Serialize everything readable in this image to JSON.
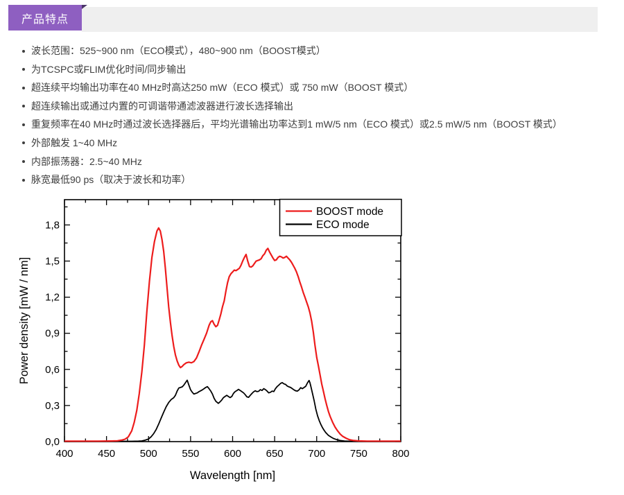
{
  "header": {
    "badge": "产品特点"
  },
  "features": [
    "波长范围：525~900 nm（ECO模式），480~900 nm（BOOST模式）",
    "为TCSPC或FLIM优化时间/同步输出",
    "超连续平均输出功率在40 MHz时高达250 mW（ECO 模式）或 750 mW（BOOST 模式）",
    "超连续输出或通过内置的可调谐带通滤波器进行波长选择输出",
    "重复频率在40 MHz时通过波长选择器后，平均光谱输出功率达到1 mW/5 nm（ECO 模式）或2.5 mW/5 nm（BOOST 模式）",
    "外部触发 1~40 MHz",
    "内部振荡器：2.5~40 MHz",
    "脉宽最低90 ps（取决于波长和功率）"
  ],
  "colors": {
    "accent_purple": "#8e5fc1",
    "fold_purple": "#4a3468",
    "bar_gray": "#efefef",
    "boost_red": "#ed1c1c",
    "eco_black": "#000000"
  },
  "chart_data": {
    "type": "line",
    "title": "",
    "xlabel": "Wavelength [nm]",
    "ylabel": "Power density [mW / nm]",
    "xlim": [
      400,
      800
    ],
    "ylim": [
      0,
      2.01
    ],
    "grid": false,
    "legend_position": "top-right",
    "x_major_ticks": [
      400,
      450,
      500,
      550,
      600,
      650,
      700,
      750,
      800
    ],
    "x_tick_labels": [
      "400",
      "450",
      "500",
      "550",
      "600",
      "650",
      "700",
      "750",
      "800"
    ],
    "x_minor_ticks": [
      425,
      475,
      525,
      575,
      625,
      675,
      725,
      775
    ],
    "y_major_ticks": [
      0,
      0.3,
      0.6,
      0.9,
      1.2,
      1.5,
      1.8
    ],
    "y_tick_labels": [
      "0,0",
      "0,3",
      "0,6",
      "0,9",
      "1,2",
      "1,5",
      "1,8"
    ],
    "y_minor_ticks": [
      0.15,
      0.45,
      0.75,
      1.05,
      1.35,
      1.65,
      1.95
    ],
    "legend": [
      {
        "name": "BOOST mode",
        "color": "#ed1c1c"
      },
      {
        "name": "ECO mode",
        "color": "#000000"
      }
    ],
    "series": [
      {
        "name": "BOOST mode",
        "color": "#ed1c1c",
        "points": [
          [
            400,
            0.004
          ],
          [
            420,
            0.004
          ],
          [
            440,
            0.004
          ],
          [
            455,
            0.005
          ],
          [
            463,
            0.007
          ],
          [
            468,
            0.012
          ],
          [
            472,
            0.02
          ],
          [
            476,
            0.04
          ],
          [
            480,
            0.09
          ],
          [
            483,
            0.16
          ],
          [
            486,
            0.26
          ],
          [
            489,
            0.4
          ],
          [
            492,
            0.58
          ],
          [
            495,
            0.8
          ],
          [
            498,
            1.08
          ],
          [
            501,
            1.33
          ],
          [
            504,
            1.53
          ],
          [
            507,
            1.66
          ],
          [
            510,
            1.75
          ],
          [
            512,
            1.775
          ],
          [
            514,
            1.75
          ],
          [
            516,
            1.68
          ],
          [
            518,
            1.58
          ],
          [
            520,
            1.44
          ],
          [
            522,
            1.28
          ],
          [
            524,
            1.12
          ],
          [
            526,
            0.99
          ],
          [
            528,
            0.88
          ],
          [
            530,
            0.79
          ],
          [
            532,
            0.72
          ],
          [
            534,
            0.67
          ],
          [
            536,
            0.635
          ],
          [
            538,
            0.615
          ],
          [
            540,
            0.625
          ],
          [
            542,
            0.64
          ],
          [
            545,
            0.655
          ],
          [
            548,
            0.66
          ],
          [
            551,
            0.655
          ],
          [
            554,
            0.665
          ],
          [
            557,
            0.695
          ],
          [
            560,
            0.745
          ],
          [
            563,
            0.8
          ],
          [
            566,
            0.85
          ],
          [
            569,
            0.9
          ],
          [
            572,
            0.965
          ],
          [
            574,
            0.995
          ],
          [
            576,
            1.005
          ],
          [
            578,
            0.975
          ],
          [
            580,
            0.955
          ],
          [
            582,
            0.965
          ],
          [
            584,
            1.01
          ],
          [
            586,
            1.06
          ],
          [
            588,
            1.12
          ],
          [
            590,
            1.17
          ],
          [
            592,
            1.25
          ],
          [
            594,
            1.32
          ],
          [
            596,
            1.37
          ],
          [
            598,
            1.395
          ],
          [
            600,
            1.41
          ],
          [
            602,
            1.425
          ],
          [
            604,
            1.42
          ],
          [
            606,
            1.43
          ],
          [
            608,
            1.44
          ],
          [
            610,
            1.465
          ],
          [
            612,
            1.5
          ],
          [
            614,
            1.53
          ],
          [
            616,
            1.555
          ],
          [
            618,
            1.5
          ],
          [
            620,
            1.455
          ],
          [
            622,
            1.45
          ],
          [
            624,
            1.46
          ],
          [
            626,
            1.48
          ],
          [
            628,
            1.5
          ],
          [
            630,
            1.505
          ],
          [
            632,
            1.51
          ],
          [
            634,
            1.52
          ],
          [
            636,
            1.545
          ],
          [
            638,
            1.56
          ],
          [
            640,
            1.59
          ],
          [
            642,
            1.605
          ],
          [
            644,
            1.575
          ],
          [
            646,
            1.55
          ],
          [
            648,
            1.525
          ],
          [
            650,
            1.505
          ],
          [
            652,
            1.51
          ],
          [
            654,
            1.53
          ],
          [
            656,
            1.54
          ],
          [
            658,
            1.535
          ],
          [
            660,
            1.525
          ],
          [
            662,
            1.53
          ],
          [
            664,
            1.54
          ],
          [
            666,
            1.525
          ],
          [
            668,
            1.51
          ],
          [
            670,
            1.49
          ],
          [
            672,
            1.465
          ],
          [
            674,
            1.44
          ],
          [
            676,
            1.41
          ],
          [
            678,
            1.37
          ],
          [
            680,
            1.325
          ],
          [
            682,
            1.285
          ],
          [
            684,
            1.24
          ],
          [
            686,
            1.2
          ],
          [
            688,
            1.16
          ],
          [
            690,
            1.12
          ],
          [
            692,
            1.07
          ],
          [
            694,
            1.0
          ],
          [
            696,
            0.91
          ],
          [
            698,
            0.8
          ],
          [
            700,
            0.7
          ],
          [
            702,
            0.63
          ],
          [
            704,
            0.555
          ],
          [
            706,
            0.48
          ],
          [
            708,
            0.42
          ],
          [
            710,
            0.355
          ],
          [
            712,
            0.3
          ],
          [
            714,
            0.25
          ],
          [
            716,
            0.21
          ],
          [
            719,
            0.16
          ],
          [
            722,
            0.12
          ],
          [
            725,
            0.088
          ],
          [
            728,
            0.062
          ],
          [
            731,
            0.044
          ],
          [
            735,
            0.028
          ],
          [
            739,
            0.016
          ],
          [
            744,
            0.009
          ],
          [
            750,
            0.006
          ],
          [
            760,
            0.004
          ],
          [
            780,
            0.004
          ],
          [
            800,
            0.004
          ]
        ]
      },
      {
        "name": "ECO mode",
        "color": "#000000",
        "points": [
          [
            400,
            0.002
          ],
          [
            450,
            0.002
          ],
          [
            480,
            0.003
          ],
          [
            488,
            0.004
          ],
          [
            492,
            0.006
          ],
          [
            496,
            0.012
          ],
          [
            500,
            0.022
          ],
          [
            503,
            0.04
          ],
          [
            506,
            0.065
          ],
          [
            509,
            0.1
          ],
          [
            512,
            0.145
          ],
          [
            515,
            0.195
          ],
          [
            518,
            0.245
          ],
          [
            521,
            0.29
          ],
          [
            524,
            0.325
          ],
          [
            527,
            0.35
          ],
          [
            530,
            0.365
          ],
          [
            532,
            0.385
          ],
          [
            534,
            0.42
          ],
          [
            536,
            0.445
          ],
          [
            538,
            0.45
          ],
          [
            540,
            0.455
          ],
          [
            542,
            0.47
          ],
          [
            544,
            0.49
          ],
          [
            546,
            0.51
          ],
          [
            548,
            0.47
          ],
          [
            550,
            0.43
          ],
          [
            552,
            0.41
          ],
          [
            554,
            0.395
          ],
          [
            556,
            0.4
          ],
          [
            558,
            0.405
          ],
          [
            560,
            0.415
          ],
          [
            562,
            0.422
          ],
          [
            564,
            0.43
          ],
          [
            566,
            0.44
          ],
          [
            568,
            0.45
          ],
          [
            570,
            0.457
          ],
          [
            572,
            0.44
          ],
          [
            574,
            0.42
          ],
          [
            576,
            0.395
          ],
          [
            578,
            0.36
          ],
          [
            580,
            0.335
          ],
          [
            583,
            0.318
          ],
          [
            585,
            0.33
          ],
          [
            587,
            0.345
          ],
          [
            589,
            0.365
          ],
          [
            591,
            0.375
          ],
          [
            593,
            0.385
          ],
          [
            595,
            0.375
          ],
          [
            597,
            0.366
          ],
          [
            599,
            0.375
          ],
          [
            601,
            0.4
          ],
          [
            603,
            0.415
          ],
          [
            605,
            0.424
          ],
          [
            607,
            0.434
          ],
          [
            609,
            0.425
          ],
          [
            611,
            0.415
          ],
          [
            613,
            0.405
          ],
          [
            615,
            0.39
          ],
          [
            617,
            0.372
          ],
          [
            619,
            0.368
          ],
          [
            621,
            0.385
          ],
          [
            623,
            0.4
          ],
          [
            625,
            0.414
          ],
          [
            627,
            0.422
          ],
          [
            629,
            0.415
          ],
          [
            631,
            0.418
          ],
          [
            633,
            0.432
          ],
          [
            635,
            0.425
          ],
          [
            637,
            0.44
          ],
          [
            639,
            0.432
          ],
          [
            641,
            0.42
          ],
          [
            643,
            0.405
          ],
          [
            645,
            0.41
          ],
          [
            647,
            0.42
          ],
          [
            649,
            0.416
          ],
          [
            651,
            0.44
          ],
          [
            653,
            0.458
          ],
          [
            655,
            0.47
          ],
          [
            657,
            0.483
          ],
          [
            659,
            0.49
          ],
          [
            661,
            0.48
          ],
          [
            663,
            0.475
          ],
          [
            665,
            0.462
          ],
          [
            667,
            0.455
          ],
          [
            669,
            0.45
          ],
          [
            671,
            0.44
          ],
          [
            673,
            0.43
          ],
          [
            675,
            0.422
          ],
          [
            677,
            0.42
          ],
          [
            679,
            0.43
          ],
          [
            681,
            0.448
          ],
          [
            683,
            0.44
          ],
          [
            685,
            0.45
          ],
          [
            687,
            0.46
          ],
          [
            689,
            0.487
          ],
          [
            691,
            0.508
          ],
          [
            692,
            0.49
          ],
          [
            693,
            0.46
          ],
          [
            695,
            0.4
          ],
          [
            697,
            0.34
          ],
          [
            699,
            0.27
          ],
          [
            701,
            0.215
          ],
          [
            703,
            0.175
          ],
          [
            705,
            0.142
          ],
          [
            707,
            0.115
          ],
          [
            709,
            0.092
          ],
          [
            711,
            0.073
          ],
          [
            714,
            0.052
          ],
          [
            717,
            0.038
          ],
          [
            720,
            0.026
          ],
          [
            724,
            0.016
          ],
          [
            728,
            0.009
          ],
          [
            733,
            0.005
          ],
          [
            740,
            0.003
          ],
          [
            760,
            0.002
          ],
          [
            800,
            0.002
          ]
        ]
      }
    ]
  }
}
